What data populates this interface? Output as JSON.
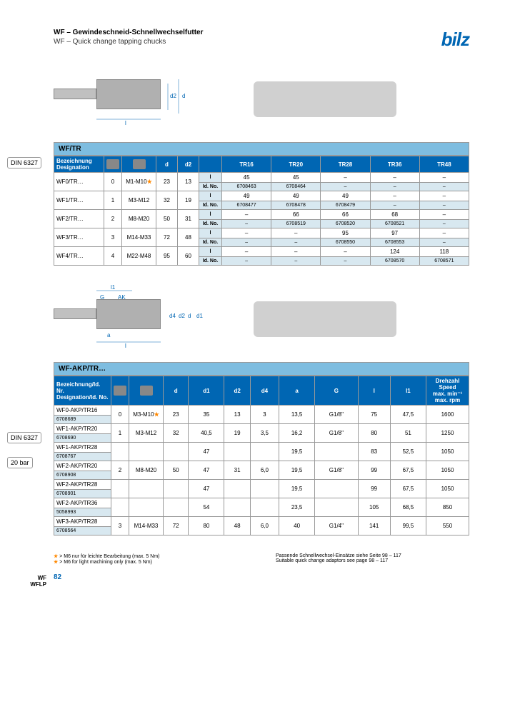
{
  "header": {
    "title_de": "WF – Gewindeschneid-Schnellwechselfutter",
    "title_en": "WF – Quick change tapping chucks",
    "logo_text": "bilz"
  },
  "side": {
    "din1": "DIN 6327",
    "din2": "DIN 6327",
    "bar": "20 bar",
    "footer_tab": "WF\nWFLP"
  },
  "table1": {
    "title": "WF/TR",
    "hdr": {
      "bez_de": "Bezeichnung",
      "bez_en": "Designation",
      "d": "d",
      "d2": "d2",
      "tr16": "TR16",
      "tr20": "TR20",
      "tr28": "TR28",
      "tr36": "TR36",
      "tr48": "TR48"
    },
    "rows": [
      {
        "name": "WF0/TR…",
        "size": "0",
        "range": "M1-M10",
        "star": true,
        "d": "23",
        "d2": "13",
        "l1": "45",
        "l2": "45",
        "l3": "–",
        "l4": "–",
        "l5": "–",
        "id1": "6708463",
        "id2": "6708464",
        "id3": "–",
        "id4": "–",
        "id5": "–"
      },
      {
        "name": "WF1/TR…",
        "size": "1",
        "range": "M3-M12",
        "d": "32",
        "d2": "19",
        "l1": "49",
        "l2": "49",
        "l3": "49",
        "l4": "–",
        "l5": "–",
        "id1": "6708477",
        "id2": "6708478",
        "id3": "6708479",
        "id4": "–",
        "id5": "–"
      },
      {
        "name": "WF2/TR…",
        "size": "2",
        "range": "M8-M20",
        "d": "50",
        "d2": "31",
        "l1": "–",
        "l2": "66",
        "l3": "66",
        "l4": "68",
        "l5": "–",
        "id1": "–",
        "id2": "6708519",
        "id3": "6708520",
        "id4": "6708521",
        "id5": "–"
      },
      {
        "name": "WF3/TR…",
        "size": "3",
        "range": "M14-M33",
        "d": "72",
        "d2": "48",
        "l1": "–",
        "l2": "–",
        "l3": "95",
        "l4": "97",
        "l5": "–",
        "id1": "–",
        "id2": "–",
        "id3": "6708550",
        "id4": "6708553",
        "id5": "–"
      },
      {
        "name": "WF4/TR…",
        "size": "4",
        "range": "M22-M48",
        "d": "95",
        "d2": "60",
        "l1": "–",
        "l2": "–",
        "l3": "–",
        "l4": "124",
        "l5": "118",
        "id1": "–",
        "id2": "–",
        "id3": "–",
        "id4": "6708570",
        "id5": "6708571"
      }
    ],
    "lbl_l": "l",
    "lbl_id": "Id. No."
  },
  "table2": {
    "title": "WF-AKP/TR…",
    "hdr": {
      "bez_de": "Bezeichnung/Id. Nr.",
      "bez_en": "Designation/Id. No.",
      "d": "d",
      "d1": "d1",
      "d2": "d2",
      "d4": "d4",
      "a": "a",
      "g": "G",
      "l": "l",
      "l1": "l1",
      "speed_de": "Drehzahl",
      "speed_en": "Speed",
      "speed_u1": "max. min⁻¹",
      "speed_u2": "max. rpm"
    },
    "rows": [
      {
        "name": "WF0-AKP/TR16",
        "id": "6708689",
        "size": "0",
        "range": "M3-M10",
        "star": true,
        "d": "23",
        "d1": "35",
        "d2": "13",
        "d4": "3",
        "a": "13,5",
        "g": "G1/8\"",
        "l": "75",
        "l1": "47,5",
        "rpm": "1600"
      },
      {
        "name": "WF1-AKP/TR20",
        "id": "6708690",
        "size": "1",
        "range": "M3-M12",
        "d": "32",
        "d1": "40,5",
        "d2": "19",
        "d4": "3,5",
        "a": "16,2",
        "g": "G1/8\"",
        "l": "80",
        "l1": "51",
        "rpm": "1250"
      },
      {
        "name": "WF1-AKP/TR28",
        "id": "6708767",
        "size": "",
        "range": "",
        "d": "",
        "d1": "47",
        "d2": "",
        "d4": "",
        "a": "19,5",
        "g": "",
        "l": "83",
        "l1": "52,5",
        "rpm": "1050"
      },
      {
        "name": "WF2-AKP/TR20",
        "id": "6708908",
        "size": "2",
        "range": "M8-M20",
        "d": "50",
        "d1": "47",
        "d2": "31",
        "d4": "6,0",
        "a": "19,5",
        "g": "G1/8\"",
        "l": "99",
        "l1": "67,5",
        "rpm": "1050"
      },
      {
        "name": "WF2-AKP/TR28",
        "id": "6708901",
        "size": "",
        "range": "",
        "d": "",
        "d1": "47",
        "d2": "",
        "d4": "",
        "a": "19,5",
        "g": "",
        "l": "99",
        "l1": "67,5",
        "rpm": "1050"
      },
      {
        "name": "WF2-AKP/TR36",
        "id": "5058993",
        "size": "",
        "range": "",
        "d": "",
        "d1": "54",
        "d2": "",
        "d4": "",
        "a": "23,5",
        "g": "",
        "l": "105",
        "l1": "68,5",
        "rpm": "850"
      },
      {
        "name": "WF3-AKP/TR28",
        "id": "6708564",
        "size": "3",
        "range": "M14-M33",
        "d": "72",
        "d1": "80",
        "d2": "48",
        "d4": "6,0",
        "a": "40",
        "g": "G1/4\"",
        "l": "141",
        "l1": "99,5",
        "rpm": "550"
      }
    ]
  },
  "footnotes": {
    "n1_de": "> M6 nur für leichte Bearbeitung (max. 5 Nm)",
    "n1_en": "> M6 for light machining only (max. 5 Nm)",
    "n2_de": "Passende Schnellwechsel-Einsätze siehe Seite 98 – 117",
    "n2_en": "Suitable quick change adaptors see page 98 – 117",
    "page": "82"
  },
  "colors": {
    "brand_blue": "#0066b3",
    "light_blue": "#7ebde0",
    "row_blue": "#d8e8f0",
    "orange": "#ff8800"
  }
}
